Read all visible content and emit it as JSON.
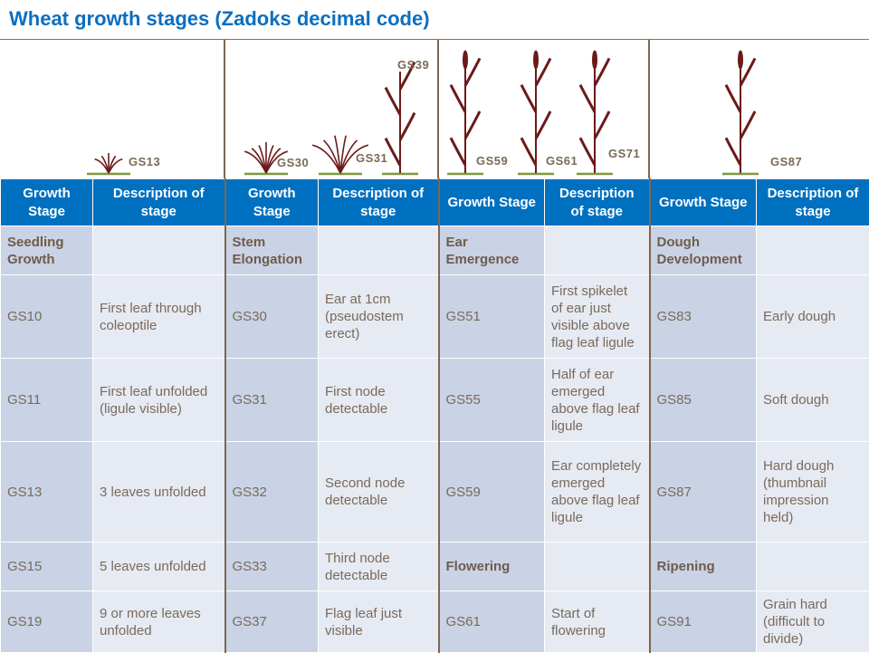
{
  "title": "Wheat growth stages (Zadoks decimal code)",
  "illustration_labels": [
    "GS13",
    "GS30",
    "GS31",
    "GS39",
    "GS59",
    "GS61",
    "GS71",
    "GS87"
  ],
  "colors": {
    "header": "#0070C0",
    "title": "#0B6FC0",
    "plant": "#6B1A1A",
    "ground": "#7A9A3A"
  },
  "headers": [
    "Growth Stage",
    "Description of stage",
    "Growth Stage",
    "Description of stage",
    "Growth Stage",
    "Description of stage",
    "Growth Stage",
    "Description of stage"
  ],
  "rows": [
    [
      "Seedling Growth",
      "",
      "Stem Elongation",
      "",
      "Ear Emergence",
      "",
      "Dough Development",
      ""
    ],
    [
      "GS10",
      "First leaf through coleoptile",
      "GS30",
      "Ear at 1cm (pseudostem erect)",
      "GS51",
      "First spikelet of ear just visible above flag leaf ligule",
      "GS83",
      "Early dough"
    ],
    [
      "GS11",
      "First leaf unfolded (ligule visible)",
      "GS31",
      "First node detectable",
      "GS55",
      "Half of ear emerged above flag leaf ligule",
      "GS85",
      "Soft dough"
    ],
    [
      "GS13",
      "3 leaves unfolded",
      "GS32",
      "Second node detectable",
      "GS59",
      "Ear completely emerged above flag leaf ligule",
      "GS87",
      "Hard dough (thumbnail impression held)"
    ],
    [
      "GS15",
      "5 leaves unfolded",
      "GS33",
      "Third node detectable",
      "Flowering",
      "",
      "Ripening",
      ""
    ],
    [
      "GS19",
      "9 or more leaves unfolded",
      "GS37",
      "Flag leaf just visible",
      "GS61",
      "Start of flowering",
      "GS91",
      "Grain hard (difficult to divide)"
    ]
  ]
}
